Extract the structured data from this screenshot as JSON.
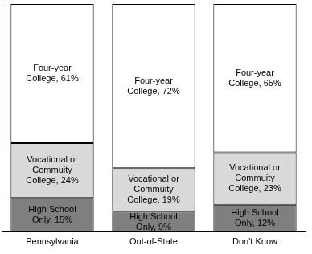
{
  "chart_data": {
    "type": "bar",
    "stacked": true,
    "data_labels": true,
    "tick_labels": "x",
    "grid": false,
    "categories": [
      "Pennsylvania",
      "Out-of-State",
      "Don't Know"
    ],
    "ylim": [
      0,
      100
    ],
    "series": [
      {
        "color": "#7f7f7f",
        "values": [
          15,
          9,
          12
        ],
        "value_labels": [
          "High School Only, 15%",
          "High School Only, 9%",
          "High School Only, 12%"
        ]
      },
      {
        "color": "#d9d9d9",
        "values": [
          24,
          19,
          23
        ],
        "value_labels": [
          "Vocational or Commuity College, 24%",
          "Vocational or Commuity College, 19%",
          "Vocational or Commuity College, 23%"
        ]
      },
      {
        "color": "#ffffff",
        "values": [
          61,
          72,
          65
        ],
        "value_labels": [
          "Four-year College, 61%",
          "Four-year College, 72%",
          "Four-year College, 65%"
        ]
      }
    ]
  }
}
